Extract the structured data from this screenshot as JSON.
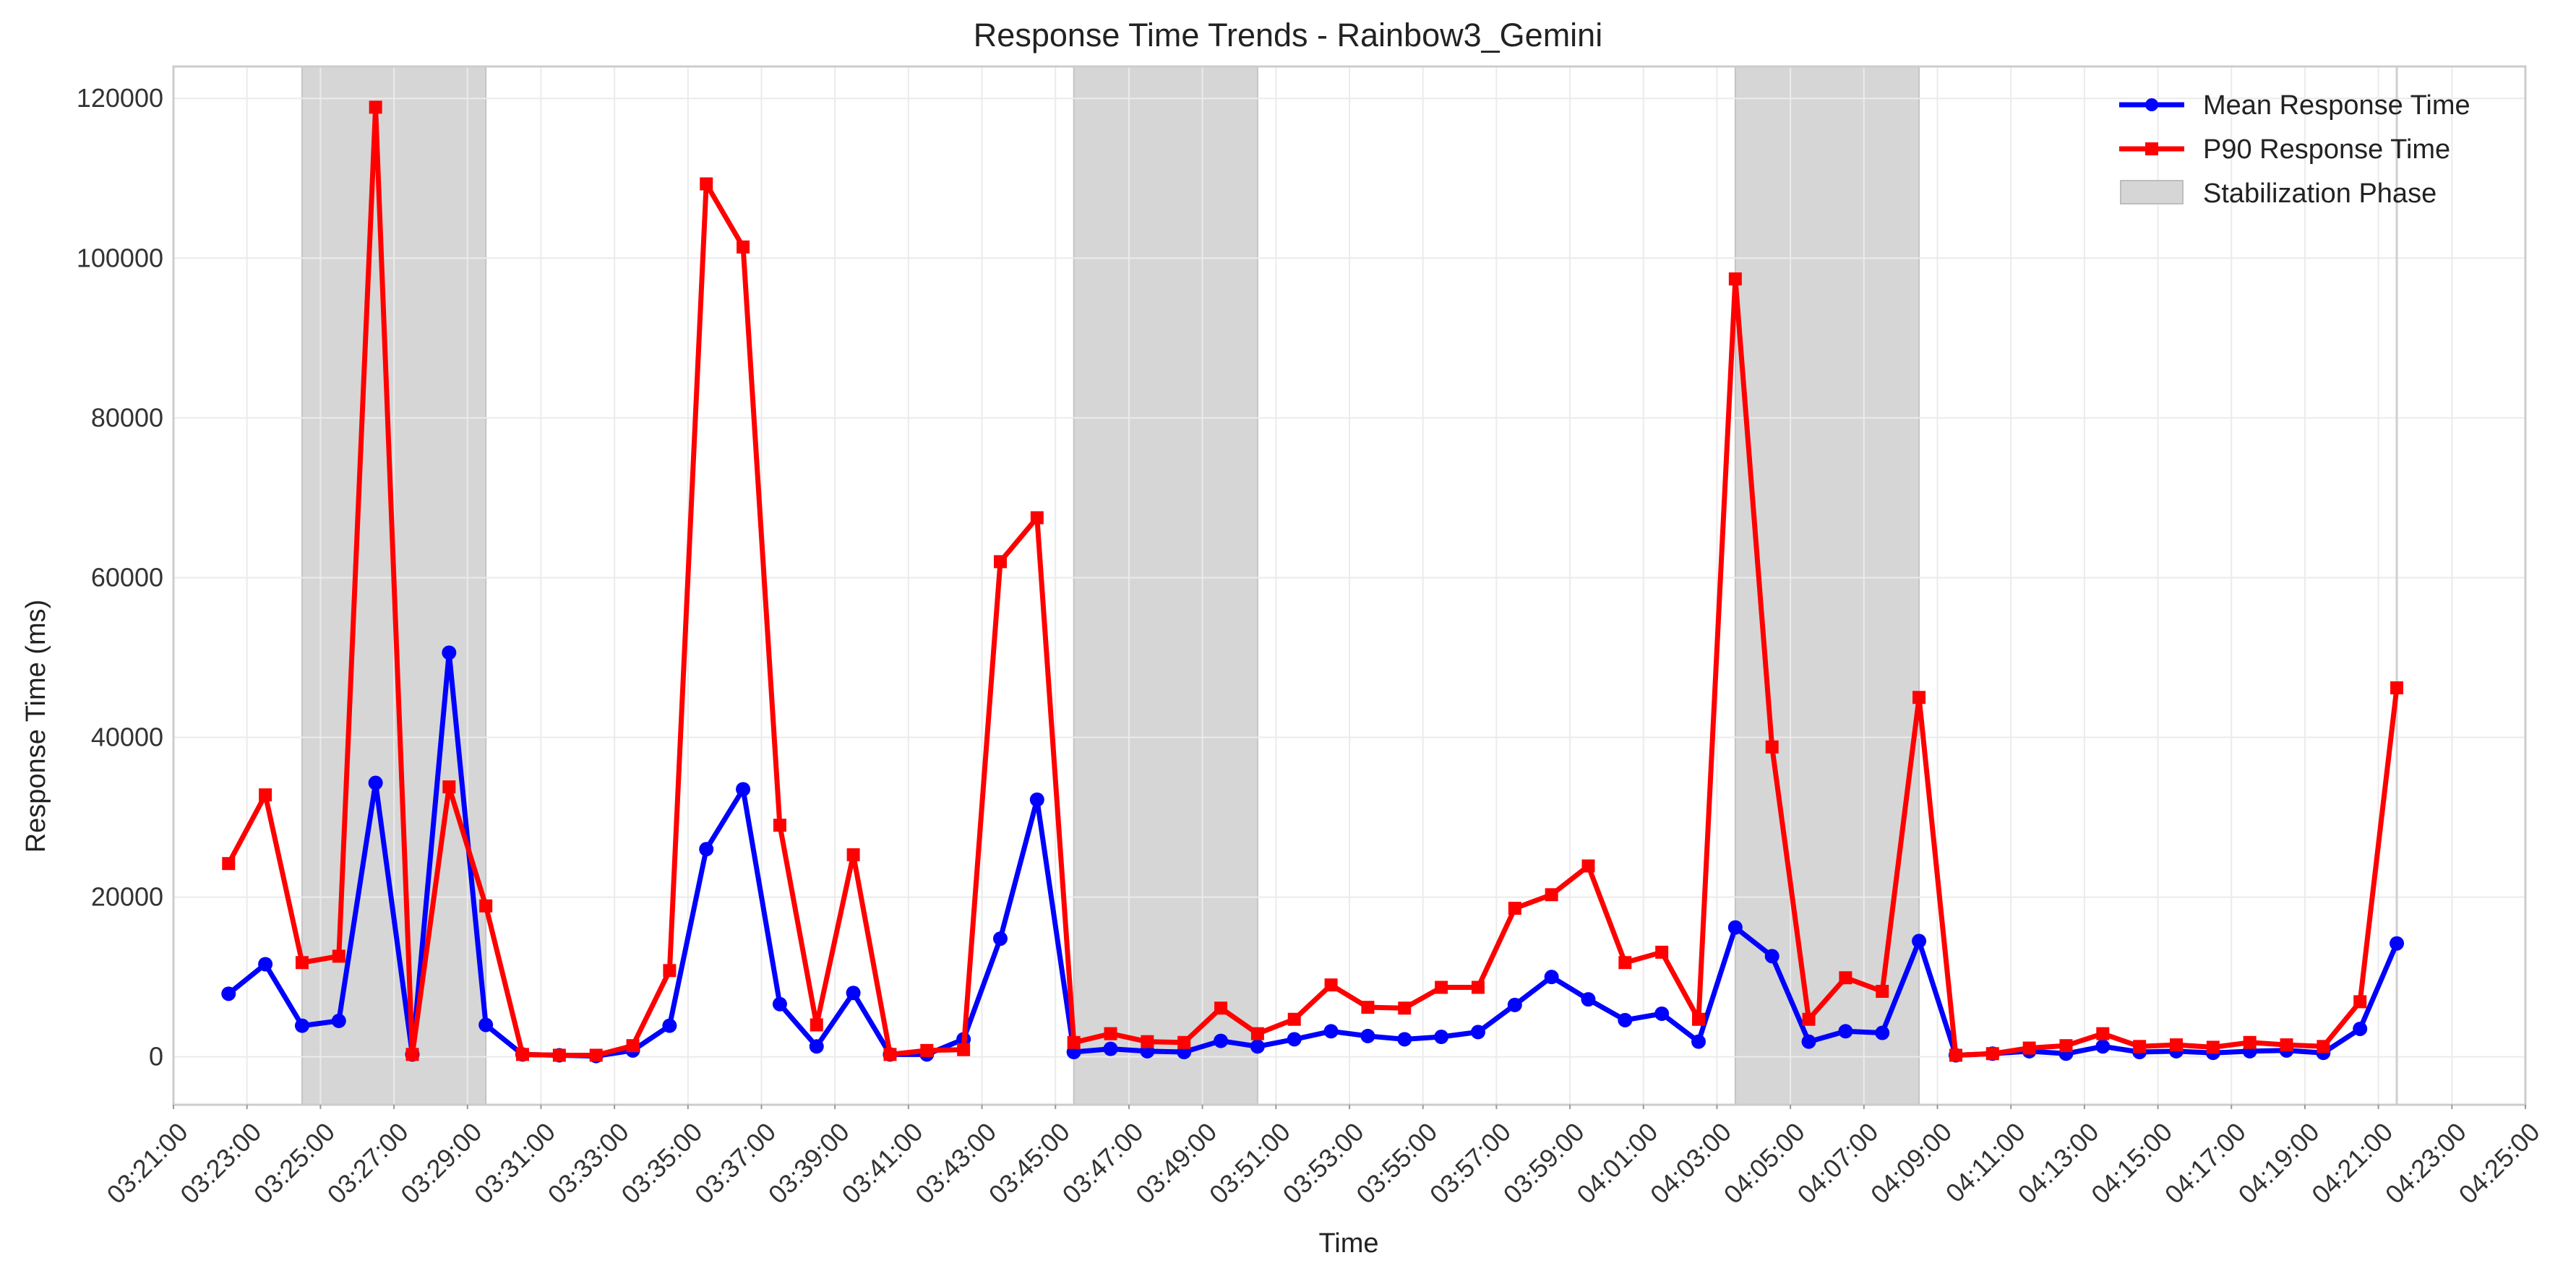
{
  "chart_data": {
    "type": "line",
    "title": "Response Time Trends - Rainbow3_Gemini",
    "xlabel": "Time",
    "ylabel": "Response Time (ms)",
    "x_axis_type": "time",
    "xlim": [
      "03:21:00",
      "04:25:00"
    ],
    "ylim": [
      -6000,
      124000
    ],
    "x_ticks": [
      "03:21:00",
      "03:23:00",
      "03:25:00",
      "03:27:00",
      "03:29:00",
      "03:31:00",
      "03:33:00",
      "03:35:00",
      "03:37:00",
      "03:39:00",
      "03:41:00",
      "03:43:00",
      "03:45:00",
      "03:47:00",
      "03:49:00",
      "03:51:00",
      "03:53:00",
      "03:55:00",
      "03:57:00",
      "03:59:00",
      "04:01:00",
      "04:03:00",
      "04:05:00",
      "04:07:00",
      "04:09:00",
      "04:11:00",
      "04:13:00",
      "04:15:00",
      "04:17:00",
      "04:19:00",
      "04:21:00",
      "04:23:00",
      "04:25:00"
    ],
    "y_ticks": [
      0,
      20000,
      40000,
      60000,
      80000,
      100000,
      120000
    ],
    "y_tick_labels": [
      "0",
      "20000",
      "40000",
      "60000",
      "80000",
      "100000",
      "120000"
    ],
    "grid": true,
    "legend_position": "top-right",
    "x": [
      "03:22:30",
      "03:23:30",
      "03:24:30",
      "03:25:30",
      "03:26:30",
      "03:27:30",
      "03:28:30",
      "03:29:30",
      "03:30:30",
      "03:31:30",
      "03:32:30",
      "03:33:30",
      "03:34:30",
      "03:35:30",
      "03:36:30",
      "03:37:30",
      "03:38:30",
      "03:39:30",
      "03:40:30",
      "03:41:30",
      "03:42:30",
      "03:43:30",
      "03:44:30",
      "03:45:30",
      "03:46:30",
      "03:47:30",
      "03:48:30",
      "03:49:30",
      "03:50:30",
      "03:51:30",
      "03:52:30",
      "03:53:30",
      "03:54:30",
      "03:55:30",
      "03:56:30",
      "03:57:30",
      "03:58:30",
      "03:59:30",
      "04:00:30",
      "04:01:30",
      "04:02:30",
      "04:03:30",
      "04:04:30",
      "04:05:30",
      "04:06:30",
      "04:07:30",
      "04:08:30",
      "04:09:30",
      "04:10:30",
      "04:11:30",
      "04:12:30",
      "04:13:30",
      "04:14:30",
      "04:15:30",
      "04:16:30",
      "04:17:30",
      "04:18:30",
      "04:19:30",
      "04:20:30",
      "04:21:30"
    ],
    "series": [
      {
        "name": "Mean Response Time",
        "color": "#0000ff",
        "marker": "circle",
        "values": [
          7900,
          11600,
          3900,
          4500,
          34300,
          300,
          50600,
          4000,
          300,
          200,
          100,
          800,
          3900,
          26000,
          33500,
          6600,
          1300,
          8000,
          300,
          300,
          2200,
          14800,
          32200,
          600,
          1000,
          700,
          600,
          2000,
          1300,
          2200,
          3200,
          2600,
          2200,
          2500,
          3100,
          6500,
          10000,
          7200,
          4600,
          5400,
          1900,
          16200,
          12600,
          1900,
          3200,
          3000,
          14500,
          200,
          400,
          700,
          400,
          1300,
          600,
          700,
          500,
          700,
          800,
          500,
          3500,
          14200
        ]
      },
      {
        "name": "P90 Response Time",
        "color": "#ff0000",
        "marker": "square",
        "values": [
          24200,
          32800,
          11800,
          12600,
          118900,
          300,
          33800,
          18900,
          300,
          200,
          200,
          1400,
          10800,
          109300,
          101400,
          29000,
          4000,
          25300,
          300,
          800,
          900,
          62000,
          67500,
          1800,
          2900,
          1900,
          1800,
          6100,
          2900,
          4700,
          9000,
          6200,
          6100,
          8700,
          8700,
          18600,
          20300,
          23900,
          11800,
          13100,
          4700,
          97400,
          38800,
          4700,
          9900,
          8200,
          45000,
          200,
          400,
          1100,
          1400,
          2900,
          1300,
          1500,
          1200,
          1800,
          1500,
          1300,
          6900,
          46200
        ]
      }
    ],
    "shaded_regions": {
      "name": "Stabilization Phase",
      "color": "#d6d6d6",
      "ranges": [
        [
          "03:24:30",
          "03:29:30"
        ],
        [
          "03:45:30",
          "03:50:30"
        ],
        [
          "04:03:30",
          "04:08:30"
        ]
      ]
    },
    "legend": [
      "Mean Response Time",
      "P90 Response Time",
      "Stabilization Phase"
    ]
  }
}
